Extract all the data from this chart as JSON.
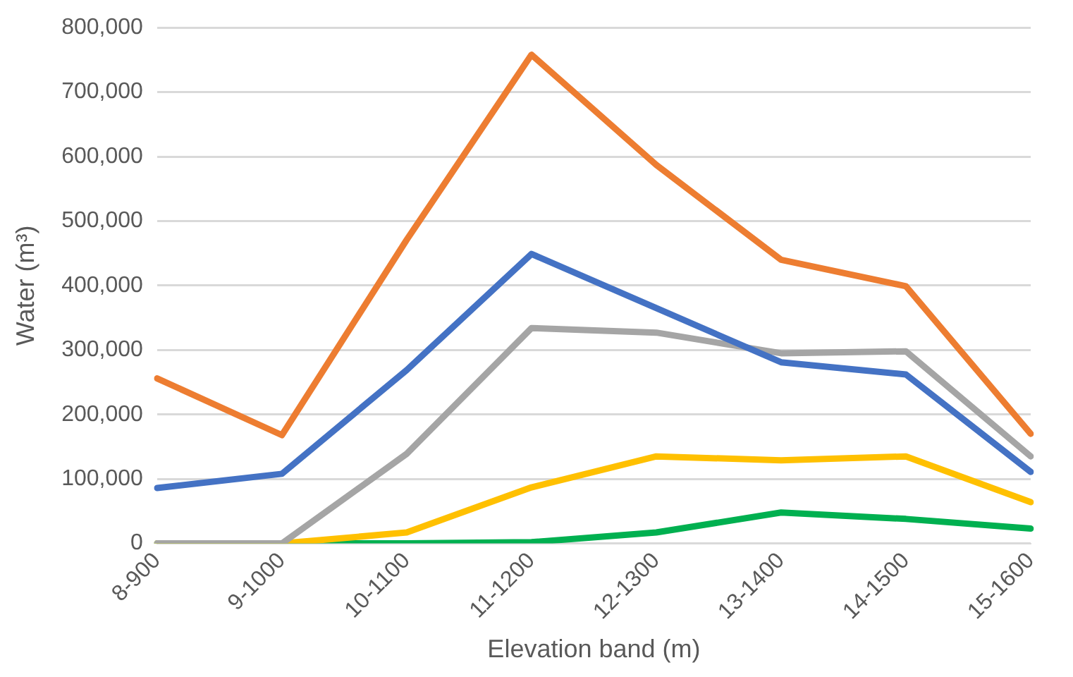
{
  "chart_data": {
    "type": "line",
    "xlabel": "Elevation band (m)",
    "ylabel": "Water (m³)",
    "categories": [
      "8-900",
      "9-1000",
      "10-1100",
      "11-1200",
      "12-1300",
      "13-1400",
      "14-1500",
      "15-1600"
    ],
    "series": [
      {
        "color": "#4472c4",
        "values": [
          86000,
          108000,
          269000,
          449000,
          365000,
          281000,
          262000,
          111000
        ]
      },
      {
        "color": "#ed7d31",
        "values": [
          256000,
          168000,
          471000,
          758000,
          587000,
          440000,
          399000,
          170000
        ]
      },
      {
        "color": "#a5a5a5",
        "values": [
          0,
          0,
          139000,
          334000,
          327000,
          295000,
          298000,
          135000
        ]
      },
      {
        "color": "#ffc000",
        "values": [
          0,
          0,
          17000,
          87000,
          135000,
          129000,
          135000,
          64000
        ]
      },
      {
        "color": "#00b050",
        "values": [
          0,
          0,
          0,
          2000,
          17000,
          48000,
          38000,
          23000
        ]
      }
    ],
    "ylim": [
      0,
      800000
    ],
    "yticks": [
      0,
      {
        "value": 100000,
        "label": "100,000"
      },
      {
        "value": 200000,
        "label": "200,000"
      },
      {
        "value": 300000,
        "label": "300,000"
      },
      {
        "value": 400000,
        "label": "400,000"
      },
      {
        "value": 500000,
        "label": "500,000"
      },
      {
        "value": 600000,
        "label": "600,000"
      },
      {
        "value": 700000,
        "label": "700,000"
      },
      {
        "value": 800000,
        "label": "800,000"
      }
    ],
    "grid": "y",
    "legend": false,
    "marker": "none",
    "line_style": "solid"
  }
}
